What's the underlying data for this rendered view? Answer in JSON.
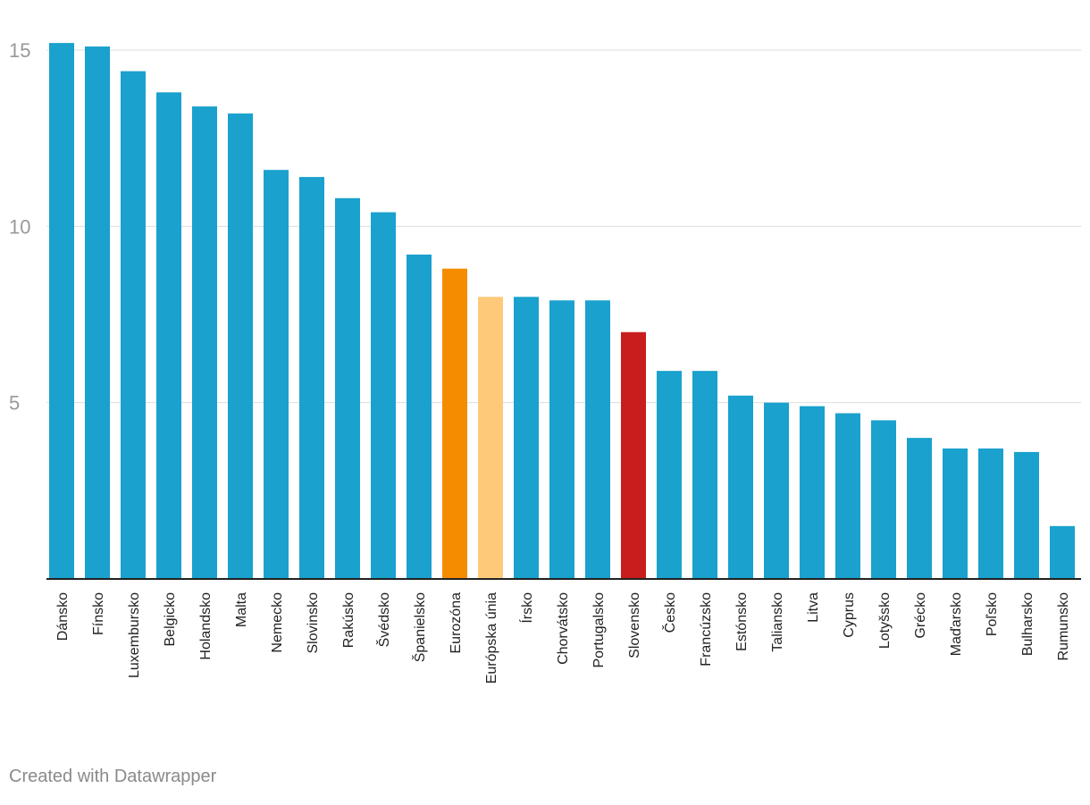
{
  "chart_data": {
    "type": "bar",
    "title": "",
    "xlabel": "",
    "ylabel": "",
    "ylim": [
      0,
      15
    ],
    "yticks": [
      5,
      10,
      15
    ],
    "grid": true,
    "default_color": "#1aa1cd",
    "categories": [
      "Dánsko",
      "Fínsko",
      "Luxembursko",
      "Belgicko",
      "Holandsko",
      "Malta",
      "Nemecko",
      "Slovinsko",
      "Rakúsko",
      "Švédsko",
      "Španielsko",
      "Eurozóna",
      "Európska únia",
      "Írsko",
      "Chorvátsko",
      "Portugalsko",
      "Slovensko",
      "Česko",
      "Francúzsko",
      "Estónsko",
      "Taliansko",
      "Litva",
      "Cyprus",
      "Lotyšsko",
      "Grécko",
      "Maďarsko",
      "Poľsko",
      "Bulharsko",
      "Rumunsko"
    ],
    "values": [
      15.2,
      15.1,
      14.4,
      13.8,
      13.4,
      13.2,
      11.6,
      11.4,
      10.8,
      10.4,
      9.2,
      8.8,
      8.0,
      8.0,
      7.9,
      7.9,
      7.0,
      5.9,
      5.9,
      5.2,
      5.0,
      4.9,
      4.7,
      4.5,
      4.0,
      3.7,
      3.7,
      3.6,
      1.5
    ],
    "highlights": [
      {
        "category": "Eurozóna",
        "color": "#f58c00"
      },
      {
        "category": "Európska únia",
        "color": "#ffc97a"
      },
      {
        "category": "Slovensko",
        "color": "#c91d1d"
      }
    ]
  },
  "footer": {
    "credit": "Created with Datawrapper"
  }
}
